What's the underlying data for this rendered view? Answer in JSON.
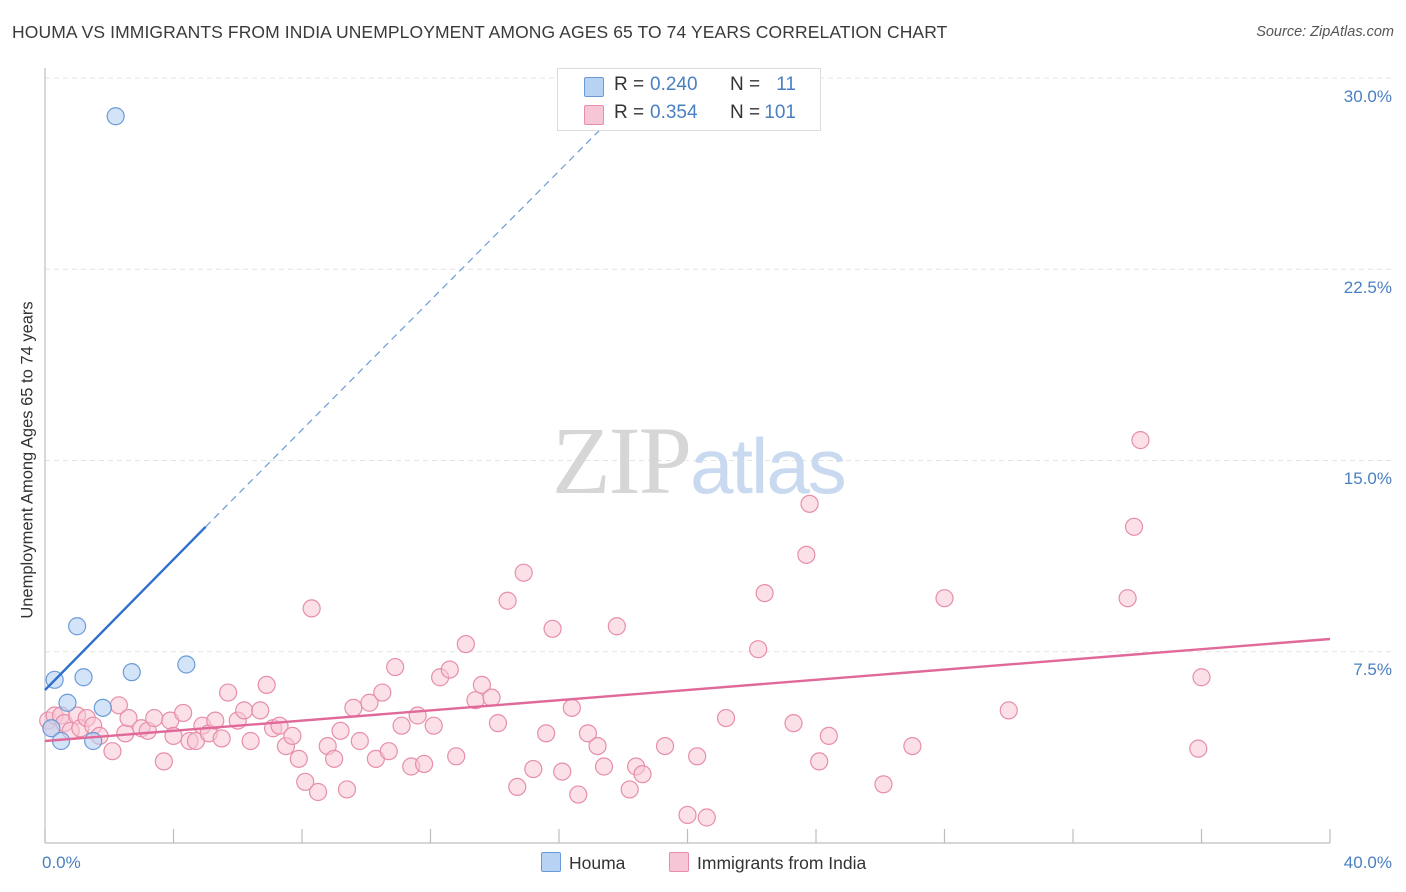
{
  "title": "HOUMA VS IMMIGRANTS FROM INDIA UNEMPLOYMENT AMONG AGES 65 TO 74 YEARS CORRELATION CHART",
  "source": "Source: ZipAtlas.com",
  "watermark": {
    "zip": "ZIP",
    "atlas": "atlas"
  },
  "legend_top": {
    "rows": [
      {
        "r_label": "R =",
        "r_value": "0.240",
        "n_label": "N =",
        "n_value": "11"
      },
      {
        "r_label": "R =",
        "r_value": "0.354",
        "n_label": "N =",
        "n_value": "101"
      }
    ]
  },
  "legend_bottom": {
    "houma": "Houma",
    "india": "Immigrants from India"
  },
  "colors": {
    "houma_fill": "#b8d2f3",
    "houma_stroke": "#6b9bd6",
    "houma_line": "#2f6fcc",
    "india_fill": "#f7c6d6",
    "india_stroke": "#e78ea9",
    "india_line": "#e0699a",
    "tick_label": "#4a7fc1",
    "grid": "#e4e4e4"
  },
  "chart_data": {
    "type": "scatter",
    "title": "HOUMA VS IMMIGRANTS FROM INDIA UNEMPLOYMENT AMONG AGES 65 TO 74 YEARS CORRELATION CHART",
    "xlabel": "",
    "ylabel": "Unemployment Among Ages 65 to 74 years",
    "xlim": [
      0,
      40
    ],
    "ylim": [
      0,
      30
    ],
    "x_tick_labels": [
      "0.0%",
      "40.0%"
    ],
    "y_ticks": [
      7.5,
      15.0,
      22.5,
      30.0
    ],
    "y_tick_labels": [
      "7.5%",
      "15.0%",
      "22.5%",
      "30.0%"
    ],
    "grid": true,
    "series": [
      {
        "name": "Houma",
        "r": 0.24,
        "n": 11,
        "points": [
          [
            0.2,
            4.5
          ],
          [
            0.3,
            6.4
          ],
          [
            0.5,
            4.0
          ],
          [
            0.7,
            5.5
          ],
          [
            1.0,
            8.5
          ],
          [
            1.2,
            6.5
          ],
          [
            1.5,
            4.0
          ],
          [
            1.8,
            5.3
          ],
          [
            2.2,
            28.5
          ],
          [
            2.7,
            6.7
          ],
          [
            4.4,
            7.0
          ]
        ],
        "trend": {
          "x": [
            0.0,
            5.0
          ],
          "y": [
            6.0,
            12.4
          ],
          "extended_x": [
            5.0,
            17.3
          ],
          "extended_y": [
            12.4,
            28.0
          ]
        }
      },
      {
        "name": "Immigrants from India",
        "r": 0.354,
        "n": 101,
        "points": [
          [
            0.1,
            4.8
          ],
          [
            0.2,
            4.5
          ],
          [
            0.3,
            5.0
          ],
          [
            0.5,
            5.0
          ],
          [
            0.6,
            4.7
          ],
          [
            0.8,
            4.4
          ],
          [
            1.0,
            5.0
          ],
          [
            1.1,
            4.5
          ],
          [
            1.3,
            4.9
          ],
          [
            1.5,
            4.6
          ],
          [
            1.7,
            4.2
          ],
          [
            2.1,
            3.6
          ],
          [
            2.3,
            5.4
          ],
          [
            2.5,
            4.3
          ],
          [
            2.6,
            4.9
          ],
          [
            3.0,
            4.5
          ],
          [
            3.2,
            4.4
          ],
          [
            3.4,
            4.9
          ],
          [
            3.7,
            3.2
          ],
          [
            3.9,
            4.8
          ],
          [
            4.0,
            4.2
          ],
          [
            4.3,
            5.1
          ],
          [
            4.5,
            4.0
          ],
          [
            4.7,
            4.0
          ],
          [
            4.9,
            4.6
          ],
          [
            5.1,
            4.3
          ],
          [
            5.3,
            4.8
          ],
          [
            5.5,
            4.1
          ],
          [
            5.7,
            5.9
          ],
          [
            6.0,
            4.8
          ],
          [
            6.2,
            5.2
          ],
          [
            6.4,
            4.0
          ],
          [
            6.7,
            5.2
          ],
          [
            6.9,
            6.2
          ],
          [
            7.1,
            4.5
          ],
          [
            7.3,
            4.6
          ],
          [
            7.5,
            3.8
          ],
          [
            7.7,
            4.2
          ],
          [
            7.9,
            3.3
          ],
          [
            8.1,
            2.4
          ],
          [
            8.3,
            9.2
          ],
          [
            8.5,
            2.0
          ],
          [
            8.8,
            3.8
          ],
          [
            9.0,
            3.3
          ],
          [
            9.2,
            4.4
          ],
          [
            9.4,
            2.1
          ],
          [
            9.6,
            5.3
          ],
          [
            9.8,
            4.0
          ],
          [
            10.1,
            5.5
          ],
          [
            10.3,
            3.3
          ],
          [
            10.5,
            5.9
          ],
          [
            10.7,
            3.6
          ],
          [
            10.9,
            6.9
          ],
          [
            11.1,
            4.6
          ],
          [
            11.4,
            3.0
          ],
          [
            11.6,
            5.0
          ],
          [
            11.8,
            3.1
          ],
          [
            12.1,
            4.6
          ],
          [
            12.3,
            6.5
          ],
          [
            12.6,
            6.8
          ],
          [
            12.8,
            3.4
          ],
          [
            13.1,
            7.8
          ],
          [
            13.4,
            5.6
          ],
          [
            13.6,
            6.2
          ],
          [
            13.9,
            5.7
          ],
          [
            14.1,
            4.7
          ],
          [
            14.4,
            9.5
          ],
          [
            14.7,
            2.2
          ],
          [
            14.9,
            10.6
          ],
          [
            15.2,
            2.9
          ],
          [
            15.6,
            4.3
          ],
          [
            15.8,
            8.4
          ],
          [
            16.1,
            2.8
          ],
          [
            16.4,
            5.3
          ],
          [
            16.6,
            1.9
          ],
          [
            16.9,
            4.3
          ],
          [
            17.2,
            3.8
          ],
          [
            17.4,
            3.0
          ],
          [
            17.8,
            8.5
          ],
          [
            18.2,
            2.1
          ],
          [
            18.4,
            3.0
          ],
          [
            18.6,
            2.7
          ],
          [
            19.3,
            3.8
          ],
          [
            20.0,
            1.1
          ],
          [
            20.3,
            3.4
          ],
          [
            20.6,
            1.0
          ],
          [
            21.2,
            4.9
          ],
          [
            22.2,
            7.6
          ],
          [
            22.4,
            9.8
          ],
          [
            23.3,
            4.7
          ],
          [
            23.7,
            11.3
          ],
          [
            23.8,
            13.3
          ],
          [
            24.1,
            3.2
          ],
          [
            24.4,
            4.2
          ],
          [
            26.1,
            2.3
          ],
          [
            27.0,
            3.8
          ],
          [
            28.0,
            9.6
          ],
          [
            30.0,
            5.2
          ],
          [
            33.7,
            9.6
          ],
          [
            33.9,
            12.4
          ],
          [
            34.1,
            15.8
          ],
          [
            35.9,
            3.7
          ],
          [
            36.0,
            6.5
          ]
        ],
        "trend": {
          "x": [
            0.0,
            40.0
          ],
          "y": [
            4.0,
            8.0
          ]
        }
      }
    ]
  }
}
